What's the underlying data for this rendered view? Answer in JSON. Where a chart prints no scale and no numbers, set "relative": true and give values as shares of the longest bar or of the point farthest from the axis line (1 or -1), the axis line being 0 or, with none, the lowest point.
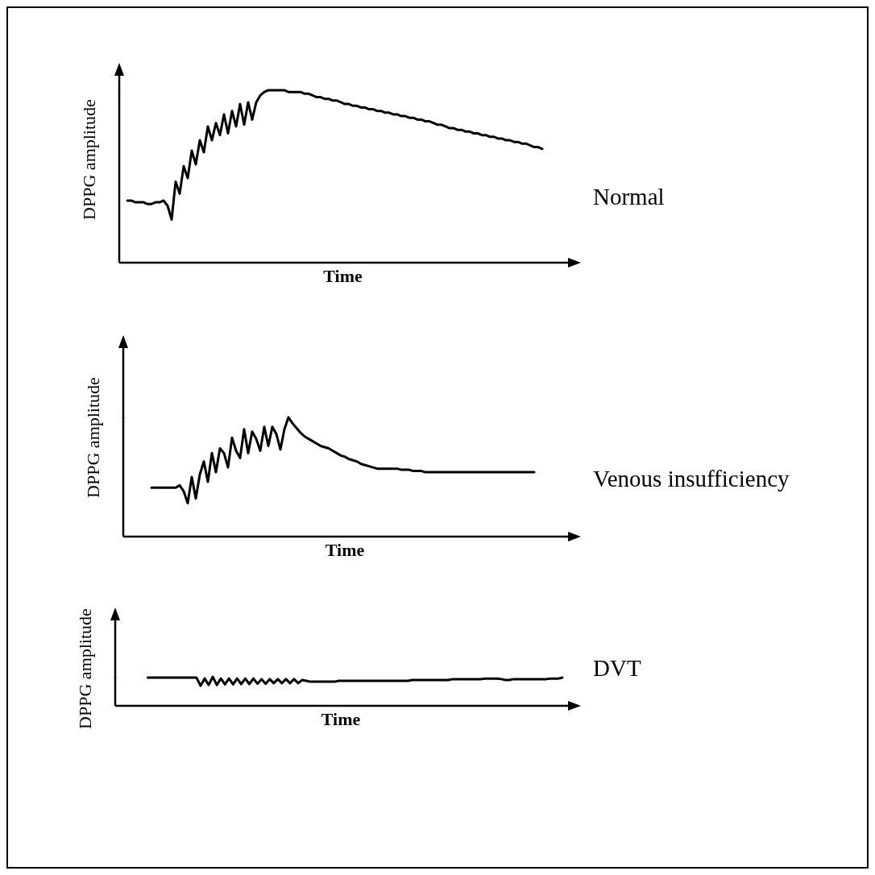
{
  "chart_data": [
    {
      "type": "line",
      "xlabel": "Time",
      "ylabel": "DPPG amplitude",
      "relative": true,
      "marker": "none",
      "categories": [
        null,
        null,
        null,
        null,
        null,
        null,
        null,
        null,
        null,
        null,
        null,
        null,
        null,
        null,
        null,
        null,
        null,
        null,
        null,
        null,
        null,
        null,
        null,
        null,
        null,
        null,
        null,
        null,
        null,
        null,
        null,
        null,
        null,
        null,
        null,
        null,
        null,
        null,
        null,
        null,
        null,
        null,
        null,
        null,
        null,
        null,
        null,
        null,
        null,
        null,
        null,
        null,
        null,
        null,
        null,
        null,
        null,
        null,
        null,
        null,
        null,
        null,
        null,
        null,
        null,
        null,
        null,
        null,
        null,
        null,
        null,
        null,
        null,
        null,
        null,
        null,
        null,
        null,
        null,
        null,
        null,
        null,
        null,
        null,
        null,
        null,
        null,
        null,
        null,
        null,
        null,
        null,
        null,
        null,
        null,
        null,
        null,
        null,
        null,
        null,
        null,
        null,
        null,
        null,
        null,
        null,
        null,
        null,
        null,
        null,
        null,
        null
      ],
      "series": [
        {
          "name": "Normal",
          "color": "#000000",
          "values": [
            null,
            null,
            0.36,
            0.36,
            0.35,
            0.35,
            0.35,
            0.34,
            0.34,
            0.35,
            0.35,
            0.36,
            0.33,
            0.25,
            0.47,
            0.4,
            0.56,
            0.49,
            0.65,
            0.57,
            0.71,
            0.64,
            0.79,
            0.71,
            0.81,
            0.74,
            0.86,
            0.75,
            0.88,
            0.79,
            0.92,
            0.8,
            0.93,
            0.83,
            0.93,
            0.97,
            0.99,
            1,
            1,
            1,
            1,
            1,
            0.99,
            0.99,
            0.99,
            0.99,
            0.98,
            0.98,
            0.97,
            0.96,
            0.96,
            0.95,
            0.95,
            0.94,
            0.94,
            0.93,
            0.92,
            0.92,
            0.91,
            0.91,
            0.9,
            0.9,
            0.89,
            0.89,
            0.88,
            0.88,
            0.87,
            0.87,
            0.86,
            0.86,
            0.85,
            0.85,
            0.84,
            0.84,
            0.83,
            0.83,
            0.82,
            0.82,
            0.81,
            0.8,
            0.8,
            0.79,
            0.78,
            0.78,
            0.77,
            0.77,
            0.76,
            0.76,
            0.75,
            0.75,
            0.74,
            0.74,
            0.73,
            0.73,
            0.72,
            0.72,
            0.71,
            0.71,
            0.7,
            0.7,
            0.69,
            0.69,
            0.68,
            0.67,
            0.67,
            0.66,
            null,
            null,
            null,
            null,
            null,
            null
          ]
        }
      ]
    },
    {
      "type": "line",
      "xlabel": "Time",
      "ylabel": "DPPG amplitude",
      "relative": true,
      "marker": "none",
      "categories": [
        null,
        null,
        null,
        null,
        null,
        null,
        null,
        null,
        null,
        null,
        null,
        null,
        null,
        null,
        null,
        null,
        null,
        null,
        null,
        null,
        null,
        null,
        null,
        null,
        null,
        null,
        null,
        null,
        null,
        null,
        null,
        null,
        null,
        null,
        null,
        null,
        null,
        null,
        null,
        null,
        null,
        null,
        null,
        null,
        null,
        null,
        null,
        null,
        null,
        null,
        null,
        null,
        null,
        null,
        null,
        null,
        null,
        null,
        null,
        null,
        null,
        null,
        null,
        null,
        null,
        null,
        null,
        null,
        null,
        null,
        null,
        null,
        null,
        null,
        null,
        null,
        null,
        null,
        null,
        null,
        null,
        null,
        null,
        null,
        null,
        null,
        null,
        null,
        null,
        null,
        null,
        null,
        null,
        null,
        null,
        null,
        null,
        null,
        null,
        null,
        null,
        null,
        null,
        null,
        null,
        null,
        null,
        null,
        null,
        null,
        null
      ],
      "series": [
        {
          "name": "Venous insufficiency",
          "color": "#000000",
          "values": [
            null,
            null,
            null,
            null,
            null,
            null,
            null,
            0.41,
            0.41,
            0.41,
            0.41,
            0.41,
            0.41,
            0.41,
            0.43,
            0.38,
            0.28,
            0.5,
            0.32,
            0.52,
            0.63,
            0.46,
            0.7,
            0.54,
            0.74,
            0.7,
            0.58,
            0.83,
            0.72,
            0.66,
            0.9,
            0.7,
            0.88,
            0.82,
            0.72,
            0.92,
            0.76,
            0.92,
            0.86,
            0.73,
            0.9,
            1,
            0.95,
            0.91,
            0.87,
            0.84,
            0.82,
            0.8,
            0.78,
            0.76,
            0.75,
            0.74,
            0.72,
            0.7,
            0.68,
            0.67,
            0.65,
            0.64,
            0.63,
            0.61,
            0.6,
            0.59,
            0.58,
            0.57,
            0.57,
            0.57,
            0.57,
            0.57,
            0.57,
            0.56,
            0.56,
            0.56,
            0.55,
            0.55,
            0.55,
            0.54,
            0.54,
            0.54,
            0.54,
            0.54,
            0.54,
            0.54,
            0.54,
            0.54,
            0.54,
            0.54,
            0.54,
            0.54,
            0.54,
            0.54,
            0.54,
            0.54,
            0.54,
            0.54,
            0.54,
            0.54,
            0.54,
            0.54,
            0.54,
            0.54,
            0.54,
            0.54,
            0.54,
            null,
            null,
            null,
            null,
            null,
            null,
            null,
            null
          ]
        }
      ]
    },
    {
      "type": "line",
      "xlabel": "Time",
      "ylabel": "DPPG amplitude",
      "relative": true,
      "marker": "none",
      "categories": [
        null,
        null,
        null,
        null,
        null,
        null,
        null,
        null,
        null,
        null,
        null,
        null,
        null,
        null,
        null,
        null,
        null,
        null,
        null,
        null,
        null,
        null,
        null,
        null,
        null,
        null,
        null,
        null,
        null,
        null,
        null,
        null,
        null,
        null,
        null,
        null,
        null,
        null,
        null,
        null,
        null,
        null,
        null,
        null,
        null,
        null,
        null,
        null,
        null,
        null,
        null,
        null,
        null,
        null,
        null,
        null,
        null,
        null,
        null,
        null,
        null,
        null,
        null,
        null,
        null,
        null,
        null,
        null,
        null,
        null,
        null,
        null,
        null,
        null,
        null,
        null,
        null,
        null,
        null,
        null,
        null,
        null,
        null,
        null,
        null,
        null,
        null,
        null,
        null,
        null,
        null,
        null,
        null,
        null,
        null,
        null,
        null,
        null,
        null,
        null,
        null,
        null,
        null,
        null,
        null,
        null,
        null,
        null,
        null,
        null,
        null,
        null
      ],
      "series": [
        {
          "name": "DVT",
          "color": "#000000",
          "values": [
            null,
            null,
            null,
            null,
            null,
            null,
            null,
            null,
            0.97,
            0.97,
            0.97,
            0.97,
            0.97,
            0.97,
            0.97,
            0.97,
            0.97,
            0.97,
            0.97,
            0.97,
            0.97,
            0.69,
            0.94,
            0.72,
            1,
            0.72,
            0.94,
            0.74,
            0.94,
            0.74,
            0.94,
            0.75,
            0.94,
            0.75,
            0.94,
            0.76,
            0.92,
            0.76,
            0.92,
            0.78,
            0.92,
            0.78,
            0.92,
            0.78,
            0.92,
            0.78,
            0.89,
            0.86,
            0.83,
            0.83,
            0.83,
            0.83,
            0.83,
            0.83,
            0.83,
            0.86,
            0.86,
            0.86,
            0.86,
            0.86,
            0.86,
            0.86,
            0.86,
            0.86,
            0.86,
            0.86,
            0.86,
            0.86,
            0.86,
            0.86,
            0.86,
            0.86,
            0.86,
            0.89,
            0.89,
            0.89,
            0.89,
            0.89,
            0.89,
            0.89,
            0.89,
            0.89,
            0.89,
            0.92,
            0.92,
            0.92,
            0.92,
            0.92,
            0.92,
            0.92,
            0.92,
            0.94,
            0.94,
            0.94,
            0.94,
            0.92,
            0.89,
            0.89,
            0.92,
            0.92,
            0.92,
            0.92,
            0.92,
            0.92,
            0.92,
            0.92,
            0.92,
            0.94,
            0.94,
            0.94,
            0.97,
            null
          ]
        }
      ]
    }
  ]
}
